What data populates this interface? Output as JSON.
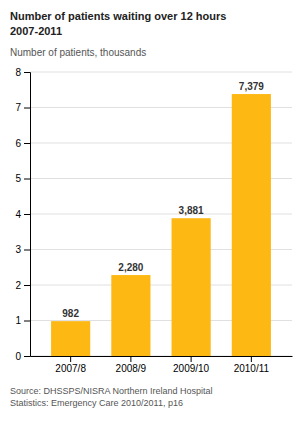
{
  "chart_data": {
    "type": "bar",
    "title": "Number of patients waiting over 12 hours\n2007-2011",
    "ylabel": "Number of patients, thousands",
    "categories": [
      "2007/8",
      "2008/9",
      "2009/10",
      "2010/11"
    ],
    "values": [
      0.982,
      2.28,
      3.881,
      7.379
    ],
    "value_labels": [
      "982",
      "2,280",
      "3,881",
      "7,379"
    ],
    "data_labels": true,
    "color": "#FDB813",
    "ylim": [
      0,
      8
    ],
    "yticks": [
      0,
      1,
      2,
      3,
      4,
      5,
      6,
      7,
      8
    ],
    "grid": true,
    "annotations": [
      "Source: DHSSPS/NISRA Northern Ireland Hospital\nStatistics: Emergency Care 2010/2011, p16"
    ]
  }
}
